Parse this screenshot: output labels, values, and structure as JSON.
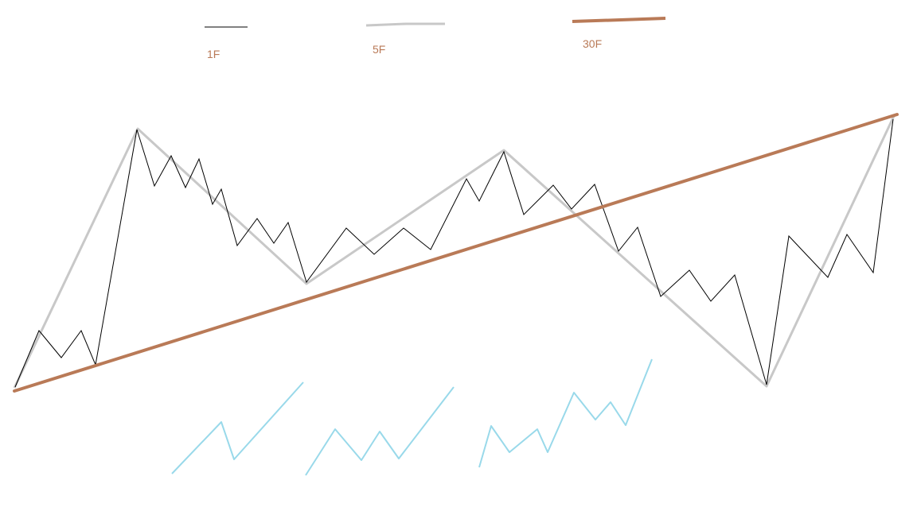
{
  "legend": {
    "items": [
      {
        "label": "1F",
        "color": "#000000",
        "style": "thin-line"
      },
      {
        "label": "5F",
        "color": "#c8c8c8",
        "style": "medium-line"
      },
      {
        "label": "30F",
        "color": "#b97a57",
        "style": "thick-line"
      }
    ],
    "label_color": "#b97a57"
  },
  "colors": {
    "line_1f": "#000000",
    "line_5f": "#c8c8c8",
    "line_30f": "#b97a57",
    "sketch": "#99d9ea",
    "background": "#ffffff"
  }
}
